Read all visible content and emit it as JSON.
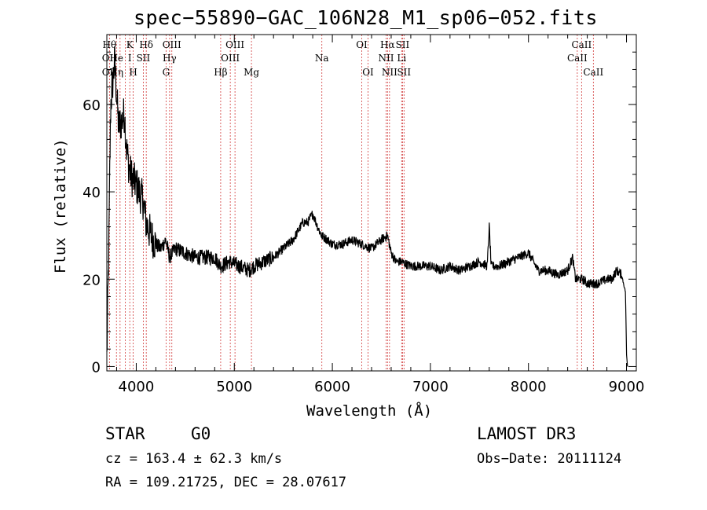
{
  "header": {
    "title": "spec−55890−GAC_106N28_M1_sp06−052.fits"
  },
  "footer": {
    "object_class": "STAR",
    "subclass": "G0",
    "survey": "LAMOST DR3",
    "redshift": "cz = 163.4 ± 62.3 km/s",
    "obs_date": "Obs−Date: 20111124",
    "coords": "RA = 109.21725, DEC =  28.07617"
  },
  "chart_data": {
    "type": "line",
    "title": "spec−55890−GAC_106N28_M1_sp06−052.fits",
    "xlabel": "Wavelength (Å)",
    "ylabel": "Flux (relative)",
    "xlim": [
      3700,
      9100
    ],
    "ylim": [
      -1,
      76
    ],
    "xticks": [
      4000,
      5000,
      6000,
      7000,
      8000,
      9000
    ],
    "yticks": [
      0,
      20,
      40,
      60
    ],
    "grid": false,
    "series": [
      {
        "name": "flux",
        "x": [
          3700,
          3710,
          3720,
          3730,
          3740,
          3760,
          3780,
          3800,
          3820,
          3850,
          3880,
          3900,
          3930,
          3960,
          3990,
          4030,
          4070,
          4100,
          4150,
          4200,
          4250,
          4300,
          4340,
          4400,
          4500,
          4600,
          4700,
          4800,
          4860,
          4950,
          5050,
          5150,
          5200,
          5300,
          5400,
          5500,
          5600,
          5700,
          5750,
          5800,
          5850,
          5890,
          5950,
          6000,
          6100,
          6200,
          6300,
          6400,
          6500,
          6562,
          6600,
          6650,
          6700,
          6800,
          6900,
          7000,
          7100,
          7200,
          7300,
          7400,
          7500,
          7580,
          7600,
          7620,
          7700,
          7800,
          7900,
          8000,
          8050,
          8100,
          8200,
          8300,
          8400,
          8450,
          8480,
          8500,
          8550,
          8600,
          8700,
          8800,
          8850,
          8900,
          8950,
          8990,
          9000,
          9010
        ],
        "values": [
          2,
          15,
          26,
          45,
          60,
          65,
          70,
          62,
          55,
          56,
          58,
          50,
          45,
          43,
          42,
          40,
          38,
          33,
          30,
          28,
          27,
          29,
          25,
          27,
          26,
          25,
          25,
          25,
          23,
          24,
          23,
          22,
          23,
          24,
          25,
          27,
          29,
          33,
          33,
          35,
          32,
          30,
          29,
          28,
          28,
          29,
          28,
          27,
          29,
          30,
          26,
          24,
          24,
          23,
          23,
          23,
          22,
          23,
          22,
          23,
          24,
          23,
          32,
          23,
          23,
          24,
          25,
          26,
          24,
          22,
          22,
          21,
          22,
          25,
          20,
          20,
          20,
          19,
          19,
          20,
          20,
          22,
          21,
          17,
          3,
          0
        ]
      }
    ],
    "lines": [
      {
        "wl": 3727,
        "top": "Hθ",
        "row2": "OII",
        "row3": "OII"
      },
      {
        "wl": 3798,
        "top": "",
        "row2": "He",
        "row3": "Hη"
      },
      {
        "wl": 3835,
        "top": "",
        "row2": "",
        "row3": ""
      },
      {
        "wl": 3889,
        "top": "",
        "row2": "",
        "row3": ""
      },
      {
        "wl": 3934,
        "top": "K",
        "row2": "I",
        "row3": ""
      },
      {
        "wl": 3969,
        "top": "",
        "row2": "",
        "row3": "H"
      },
      {
        "wl": 4072,
        "top": "",
        "row2": "SII",
        "row3": ""
      },
      {
        "wl": 4102,
        "top": "Hδ",
        "row2": "",
        "row3": ""
      },
      {
        "wl": 4304,
        "top": "",
        "row2": "",
        "row3": "G"
      },
      {
        "wl": 4340,
        "top": "",
        "row2": "Hγ",
        "row3": ""
      },
      {
        "wl": 4363,
        "top": "OIII",
        "row2": "",
        "row3": ""
      },
      {
        "wl": 4861,
        "top": "",
        "row2": "",
        "row3": "Hβ"
      },
      {
        "wl": 4959,
        "top": "",
        "row2": "OIII",
        "row3": ""
      },
      {
        "wl": 5007,
        "top": "OIII",
        "row2": "",
        "row3": ""
      },
      {
        "wl": 5175,
        "top": "",
        "row2": "",
        "row3": "Mg"
      },
      {
        "wl": 5893,
        "top": "",
        "row2": "Na",
        "row3": ""
      },
      {
        "wl": 6300,
        "top": "OI",
        "row2": "",
        "row3": ""
      },
      {
        "wl": 6364,
        "top": "",
        "row2": "",
        "row3": "OI"
      },
      {
        "wl": 6548,
        "top": "",
        "row2": "NII",
        "row3": ""
      },
      {
        "wl": 6563,
        "top": "Hα",
        "row2": "",
        "row3": ""
      },
      {
        "wl": 6583,
        "top": "",
        "row2": "",
        "row3": "NII"
      },
      {
        "wl": 6707,
        "top": "",
        "row2": "Li",
        "row3": ""
      },
      {
        "wl": 6716,
        "top": "SII",
        "row2": "",
        "row3": ""
      },
      {
        "wl": 6731,
        "top": "",
        "row2": "",
        "row3": "SII"
      },
      {
        "wl": 8498,
        "top": "",
        "row2": "CaII",
        "row3": ""
      },
      {
        "wl": 8542,
        "top": "CaII",
        "row2": "",
        "row3": ""
      },
      {
        "wl": 8662,
        "top": "",
        "row2": "",
        "row3": "CaII"
      }
    ],
    "colors": {
      "axis": "#000000",
      "line": "#000000",
      "marker": "#d23c3c"
    }
  }
}
